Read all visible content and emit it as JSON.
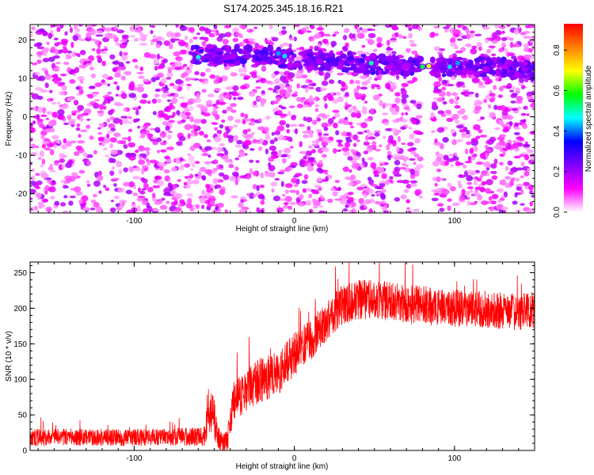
{
  "title": "S174.2025.345.18.16.R21",
  "chart_data": [
    {
      "type": "heatmap",
      "xlabel": "Height of straight line (km)",
      "ylabel": "Frequency (Hz)",
      "xlim": [
        -165,
        150
      ],
      "ylim": [
        -25,
        24
      ],
      "xticks": [
        -100,
        0,
        100
      ],
      "yticks": [
        -20,
        -10,
        0,
        10,
        20
      ],
      "colorbar": {
        "label": "Normalized spectral amplitude",
        "range": [
          0,
          0.93
        ],
        "ticks": [
          "0.0",
          "0.2",
          "0.4",
          "0.6",
          "0.8"
        ],
        "tick_values": [
          0.0,
          0.2,
          0.4,
          0.6,
          0.8
        ],
        "colors": [
          "#ffffff",
          "#ff00ff",
          "#8000ff",
          "#0000ff",
          "#00ffff",
          "#00ff00",
          "#ffff00",
          "#ff8000",
          "#ff0000"
        ]
      },
      "band": {
        "start_km": -65,
        "end_km": 150,
        "frequency_hz": [
          [
            -65,
            16
          ],
          [
            -20,
            16
          ],
          [
            0,
            15
          ],
          [
            40,
            14
          ],
          [
            80,
            13
          ],
          [
            120,
            13
          ],
          [
            150,
            12
          ]
        ]
      },
      "gap_km": [
        79,
        86
      ],
      "peaks": [
        {
          "x": -60,
          "y": 15.5,
          "amp": 0.48
        },
        {
          "x": -10,
          "y": 16.5,
          "amp": 0.42
        },
        {
          "x": -6,
          "y": 15.8,
          "amp": 0.45
        },
        {
          "x": 48,
          "y": 14,
          "amp": 0.5
        },
        {
          "x": 80,
          "y": 13,
          "amp": 0.55
        },
        {
          "x": 84,
          "y": 13.2,
          "amp": 0.68
        },
        {
          "x": 97,
          "y": 13,
          "amp": 0.45
        },
        {
          "x": 102,
          "y": 14,
          "amp": 0.42
        }
      ]
    },
    {
      "type": "line",
      "xlabel": "Height of straight line (km)",
      "ylabel": "SNR (10 * v/v)",
      "xlim": [
        -165,
        150
      ],
      "ylim": [
        0,
        265
      ],
      "xticks": [
        -100,
        0,
        100
      ],
      "yticks": [
        0,
        50,
        100,
        150,
        200,
        250
      ],
      "color": "#ff0000",
      "series": [
        {
          "name": "SNR",
          "x": [
            -165,
            -140,
            -110,
            -80,
            -56,
            -54,
            -50,
            -48,
            -45,
            -42,
            -38,
            -34,
            -30,
            -20,
            -10,
            0,
            10,
            20,
            30,
            40,
            50,
            60,
            70,
            80,
            90,
            100,
            110,
            120,
            130,
            140,
            150
          ],
          "values": [
            18,
            19,
            18,
            19,
            20,
            55,
            45,
            20,
            8,
            12,
            70,
            75,
            85,
            100,
            110,
            135,
            155,
            182,
            205,
            212,
            213,
            210,
            205,
            205,
            200,
            200,
            200,
            198,
            196,
            195,
            197
          ],
          "noise_amplitude": [
            12,
            12,
            12,
            12,
            14,
            35,
            30,
            20,
            14,
            18,
            30,
            30,
            30,
            32,
            32,
            30,
            30,
            28,
            28,
            28,
            28,
            28,
            28,
            28,
            26,
            26,
            26,
            26,
            26,
            26,
            26
          ]
        }
      ]
    }
  ]
}
